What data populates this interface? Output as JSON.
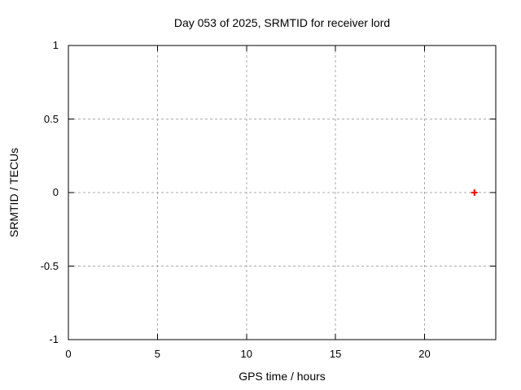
{
  "page": {
    "background": "#ffffff",
    "text_color": "#000000"
  },
  "chart_data": {
    "type": "scatter",
    "title": "Day 053 of 2025, SRMTID for receiver lord",
    "xlabel": "GPS time / hours",
    "ylabel": "SRMTID / TECUs",
    "xlim": [
      0,
      24
    ],
    "ylim": [
      -1,
      1
    ],
    "xticks": [
      {
        "value": 0,
        "label": "0"
      },
      {
        "value": 5,
        "label": "5"
      },
      {
        "value": 10,
        "label": "10"
      },
      {
        "value": 15,
        "label": "15"
      },
      {
        "value": 20,
        "label": "20"
      }
    ],
    "yticks": [
      {
        "value": -1,
        "label": "-1"
      },
      {
        "value": -0.5,
        "label": "-0.5"
      },
      {
        "value": 0,
        "label": "0"
      },
      {
        "value": 0.5,
        "label": "0.5"
      },
      {
        "value": 1,
        "label": "1"
      }
    ],
    "grid": true,
    "legend": "none",
    "colors": {
      "axis": "#000000",
      "grid": "#a8a8a8",
      "marker": "#ff0000"
    },
    "series": [
      {
        "name": "SRMTID",
        "marker": "plus",
        "color": "#ff0000",
        "points": [
          {
            "x": 22.8,
            "y": 0
          }
        ]
      }
    ]
  }
}
